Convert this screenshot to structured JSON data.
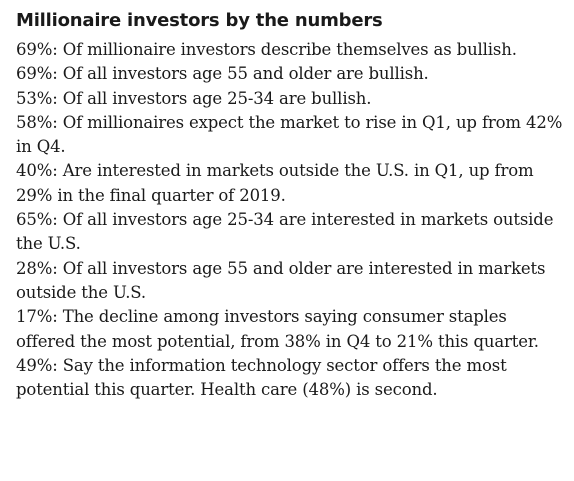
{
  "title": "Millionaire investors by the numbers",
  "items": [
    "69%: Of millionaire investors describe themselves as bullish.",
    "69%: Of all investors age 55 and older are bullish.",
    "53%: Of all investors age 25-34 are bullish.",
    "58%: Of millionaires expect the market to rise in Q1, up from 42% in Q4.",
    "40%: Are interested in markets outside the U.S. in Q1, up from 29% in the final quarter of 2019.",
    "65%: Of all investors age 25-34 are interested in markets outside the U.S.",
    "28%: Of all investors age 55 and older are interested in markets outside the U.S.",
    "17%: The decline among investors saying consumer staples offered the most potential, from 38% in Q4 to 21% this quarter.",
    "49%: Say the information technology sector offers the most potential this quarter. Health care (48%) is second."
  ]
}
